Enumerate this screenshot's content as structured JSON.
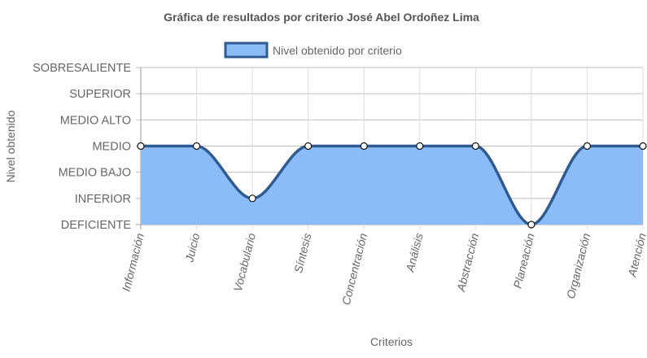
{
  "chart_data": {
    "type": "area",
    "title": "Gráfica de resultados por criterio José Abel Ordoñez Lima",
    "xlabel": "Criterios",
    "ylabel": "Nivel obtenido",
    "y_levels": [
      "DEFICIENTE",
      "INFERIOR",
      "MEDIO BAJO",
      "MEDIO",
      "MEDIO ALTO",
      "SUPERIOR",
      "SOBRESALIENTE"
    ],
    "categories": [
      "Información",
      "Juicio",
      "Vocabulario",
      "Síntesis",
      "Concentración",
      "Análisis",
      "Abstracción",
      "Planeación",
      "Organización",
      "Atención"
    ],
    "series": [
      {
        "name": "Nivel obtenido por criterio",
        "values": [
          3,
          3,
          1,
          3,
          3,
          3,
          3,
          0,
          3,
          3
        ],
        "line_color": "#2f5b92",
        "fill_color": "#8bbcf7"
      }
    ],
    "ylim": [
      0,
      6
    ],
    "grid": true,
    "legend_position": "top-center"
  }
}
